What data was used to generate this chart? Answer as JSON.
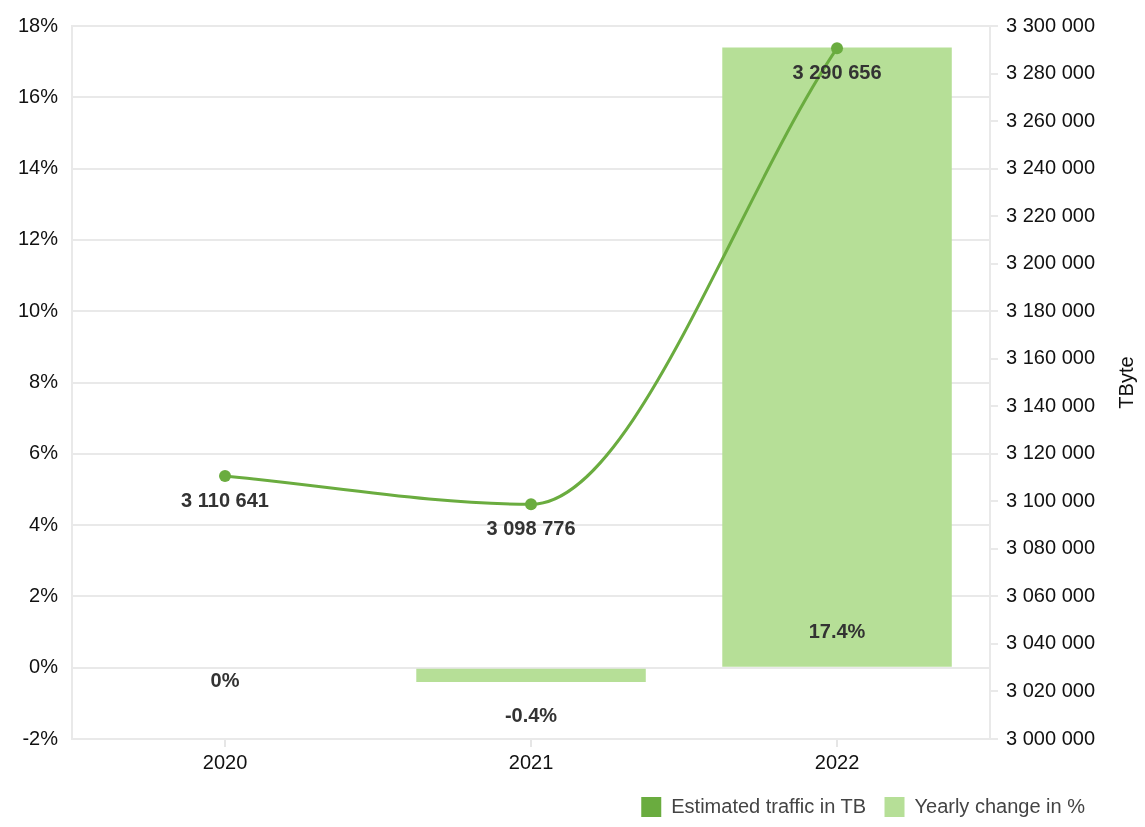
{
  "chart_data": {
    "type": "bar",
    "categories": [
      "2020",
      "2021",
      "2022"
    ],
    "series": [
      {
        "name": "Estimated traffic in TB",
        "type": "line",
        "axis": "y2",
        "color": "#6aac3f",
        "marker": "circle",
        "values": [
          3110641,
          3098776,
          3290656
        ],
        "value_labels": [
          "3 110 641",
          "3 098 776",
          "3 290 656"
        ]
      },
      {
        "name": "Yearly change in %",
        "color": "#b6df97",
        "values": [
          0,
          -0.4,
          17.4
        ],
        "value_labels": [
          "0%",
          "-0.4%",
          "17.4%"
        ]
      }
    ],
    "ylim": [
      -2,
      18
    ],
    "yticks": [
      {
        "value": -2,
        "label": "-2%"
      },
      {
        "value": 0,
        "label": "0%"
      },
      {
        "value": 2,
        "label": "2%"
      },
      {
        "value": 4,
        "label": "4%"
      },
      {
        "value": 6,
        "label": "6%"
      },
      {
        "value": 8,
        "label": "8%"
      },
      {
        "value": 10,
        "label": "10%"
      },
      {
        "value": 12,
        "label": "12%"
      },
      {
        "value": 14,
        "label": "14%"
      },
      {
        "value": 16,
        "label": "16%"
      },
      {
        "value": 18,
        "label": "18%"
      }
    ],
    "y2lim": [
      3000000,
      3300000
    ],
    "y2ticks": [
      {
        "value": 3000000,
        "label": "3 000 000"
      },
      {
        "value": 3020000,
        "label": "3 020 000"
      },
      {
        "value": 3040000,
        "label": "3 040 000"
      },
      {
        "value": 3060000,
        "label": "3 060 000"
      },
      {
        "value": 3080000,
        "label": "3 080 000"
      },
      {
        "value": 3100000,
        "label": "3 100 000"
      },
      {
        "value": 3120000,
        "label": "3 120 000"
      },
      {
        "value": 3140000,
        "label": "3 140 000"
      },
      {
        "value": 3160000,
        "label": "3 160 000"
      },
      {
        "value": 3180000,
        "label": "3 180 000"
      },
      {
        "value": 3200000,
        "label": "3 200 000"
      },
      {
        "value": 3220000,
        "label": "3 220 000"
      },
      {
        "value": 3240000,
        "label": "3 240 000"
      },
      {
        "value": 3260000,
        "label": "3 260 000"
      },
      {
        "value": 3280000,
        "label": "3 280 000"
      },
      {
        "value": 3300000,
        "label": "3 300 000"
      }
    ],
    "y2label": "TByte",
    "grid": "y",
    "legend": "bottom right"
  }
}
